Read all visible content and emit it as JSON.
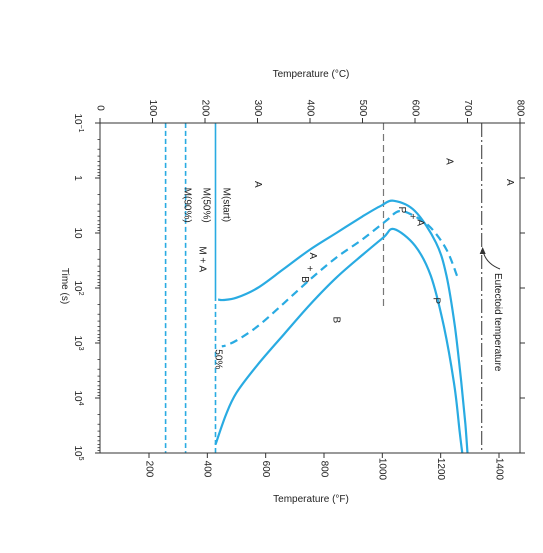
{
  "chart_data": {
    "type": "line",
    "orientation": "rotated 90 degrees clockwise: time axis runs top to bottom along the left edge, temperature axis runs left to right",
    "top_axis": {
      "label": "Temperature (°C)",
      "range": [
        0,
        800
      ],
      "ticks": [
        "0",
        "100",
        "200",
        "300",
        "400",
        "500",
        "600",
        "700",
        "800"
      ]
    },
    "bottom_axis": {
      "label": "Temperature (°F)",
      "range": [
        32,
        1472
      ],
      "ticks": [
        "200",
        "400",
        "600",
        "800",
        "1000",
        "1200",
        "1400"
      ],
      "tick_values_f": [
        200,
        400,
        600,
        800,
        1000,
        1200,
        1400
      ]
    },
    "time_axis": {
      "label": "Time (s)",
      "scale": "log",
      "range": [
        0.1,
        100000
      ],
      "ticks": [
        {
          "base": "10",
          "exp": "−1",
          "value": 0.1
        },
        {
          "base": "1",
          "exp": "",
          "value": 1
        },
        {
          "base": "10",
          "exp": "",
          "value": 10
        },
        {
          "base": "10",
          "exp": "2",
          "value": 100
        },
        {
          "base": "10",
          "exp": "3",
          "value": 1000
        },
        {
          "base": "10",
          "exp": "4",
          "value": 10000
        },
        {
          "base": "10",
          "exp": "5",
          "value": 100000
        }
      ]
    },
    "colors": {
      "curve": "#29abe2",
      "eutectoid": "#555555",
      "nose": "#777777",
      "axis": "#333333"
    },
    "series": [
      {
        "style": "solid",
        "points_T_time": [
          [
            700,
            100000
          ],
          [
            696,
            30000
          ],
          [
            688,
            5000
          ],
          [
            676,
            500
          ],
          [
            660,
            60
          ],
          [
            640,
            15
          ],
          [
            600,
            4
          ],
          [
            560,
            2.6
          ],
          [
            535,
            3.2
          ],
          [
            500,
            5
          ],
          [
            450,
            10
          ],
          [
            400,
            20
          ],
          [
            350,
            45
          ],
          [
            300,
            100
          ],
          [
            260,
            150
          ],
          [
            235,
            165
          ],
          [
            225,
            162
          ]
        ]
      },
      {
        "style": "dashed",
        "points_T_time": [
          [
            680,
            60
          ],
          [
            660,
            20
          ],
          [
            630,
            8
          ],
          [
            600,
            5
          ],
          [
            570,
            4
          ],
          [
            545,
            6
          ],
          [
            500,
            13
          ],
          [
            450,
            28
          ],
          [
            400,
            70
          ],
          [
            350,
            190
          ],
          [
            300,
            500
          ],
          [
            260,
            900
          ],
          [
            240,
            1100
          ],
          [
            232,
            1150
          ]
        ]
      },
      {
        "style": "solid",
        "points_T_time": [
          [
            690,
            100000
          ],
          [
            685,
            40000
          ],
          [
            675,
            6000
          ],
          [
            655,
            500
          ],
          [
            630,
            60
          ],
          [
            600,
            17
          ],
          [
            560,
            8.5
          ],
          [
            540,
            12
          ],
          [
            500,
            25
          ],
          [
            450,
            65
          ],
          [
            400,
            200
          ],
          [
            350,
            700
          ],
          [
            300,
            2500
          ],
          [
            260,
            8000
          ],
          [
            240,
            20000
          ],
          [
            220,
            70000
          ]
        ]
      },
      {
        "style": "solid",
        "name": "M(start)",
        "points_T_time": [
          [
            220,
            0.1
          ],
          [
            220,
            140
          ]
        ]
      },
      {
        "style": "dashed",
        "name": "M(50%)",
        "points_T_time": [
          [
            220,
            140
          ],
          [
            220,
            100000
          ]
        ]
      },
      {
        "style": "dashed",
        "name": "M(50%)",
        "points_T_time": [
          [
            163,
            0.1
          ],
          [
            163,
            100000
          ]
        ]
      },
      {
        "style": "dashed",
        "name": "M(90%)",
        "points_T_time": [
          [
            125,
            0.1
          ],
          [
            125,
            100000
          ]
        ]
      }
    ],
    "eutectoid_line": {
      "temperature_c": 727,
      "label": "Eutectoid temperature"
    },
    "nose_line": {
      "temperature_c": 540,
      "time_range": [
        0.1,
        250
      ]
    },
    "curve_labels": [
      {
        "text": "M(start)",
        "T": 235,
        "time": 1.5
      },
      {
        "text": "M(50%)",
        "T": 197,
        "time": 1.5
      },
      {
        "text": "M(90%)",
        "T": 161,
        "time": 1.5
      },
      {
        "text": "50%",
        "T": 220,
        "time": 1300
      }
    ],
    "region_labels": [
      {
        "text": "A",
        "T": 665,
        "time": 0.5
      },
      {
        "text": "A",
        "T": 780,
        "time": 1.2
      },
      {
        "text": "A",
        "T": 300,
        "time": 1.3
      },
      {
        "text": "P",
        "T": 575,
        "time": 3.8
      },
      {
        "text": "+",
        "T": 595,
        "time": 5.0
      },
      {
        "text": "A",
        "T": 610,
        "time": 6.5
      },
      {
        "text": "A",
        "T": 405,
        "time": 26
      },
      {
        "text": "+",
        "T": 398,
        "time": 44
      },
      {
        "text": "B",
        "T": 390,
        "time": 70
      },
      {
        "text": "P",
        "T": 640,
        "time": 170
      },
      {
        "text": "B",
        "T": 450,
        "time": 380
      },
      {
        "text": "M + A",
        "T": 195,
        "time": 30
      }
    ]
  }
}
